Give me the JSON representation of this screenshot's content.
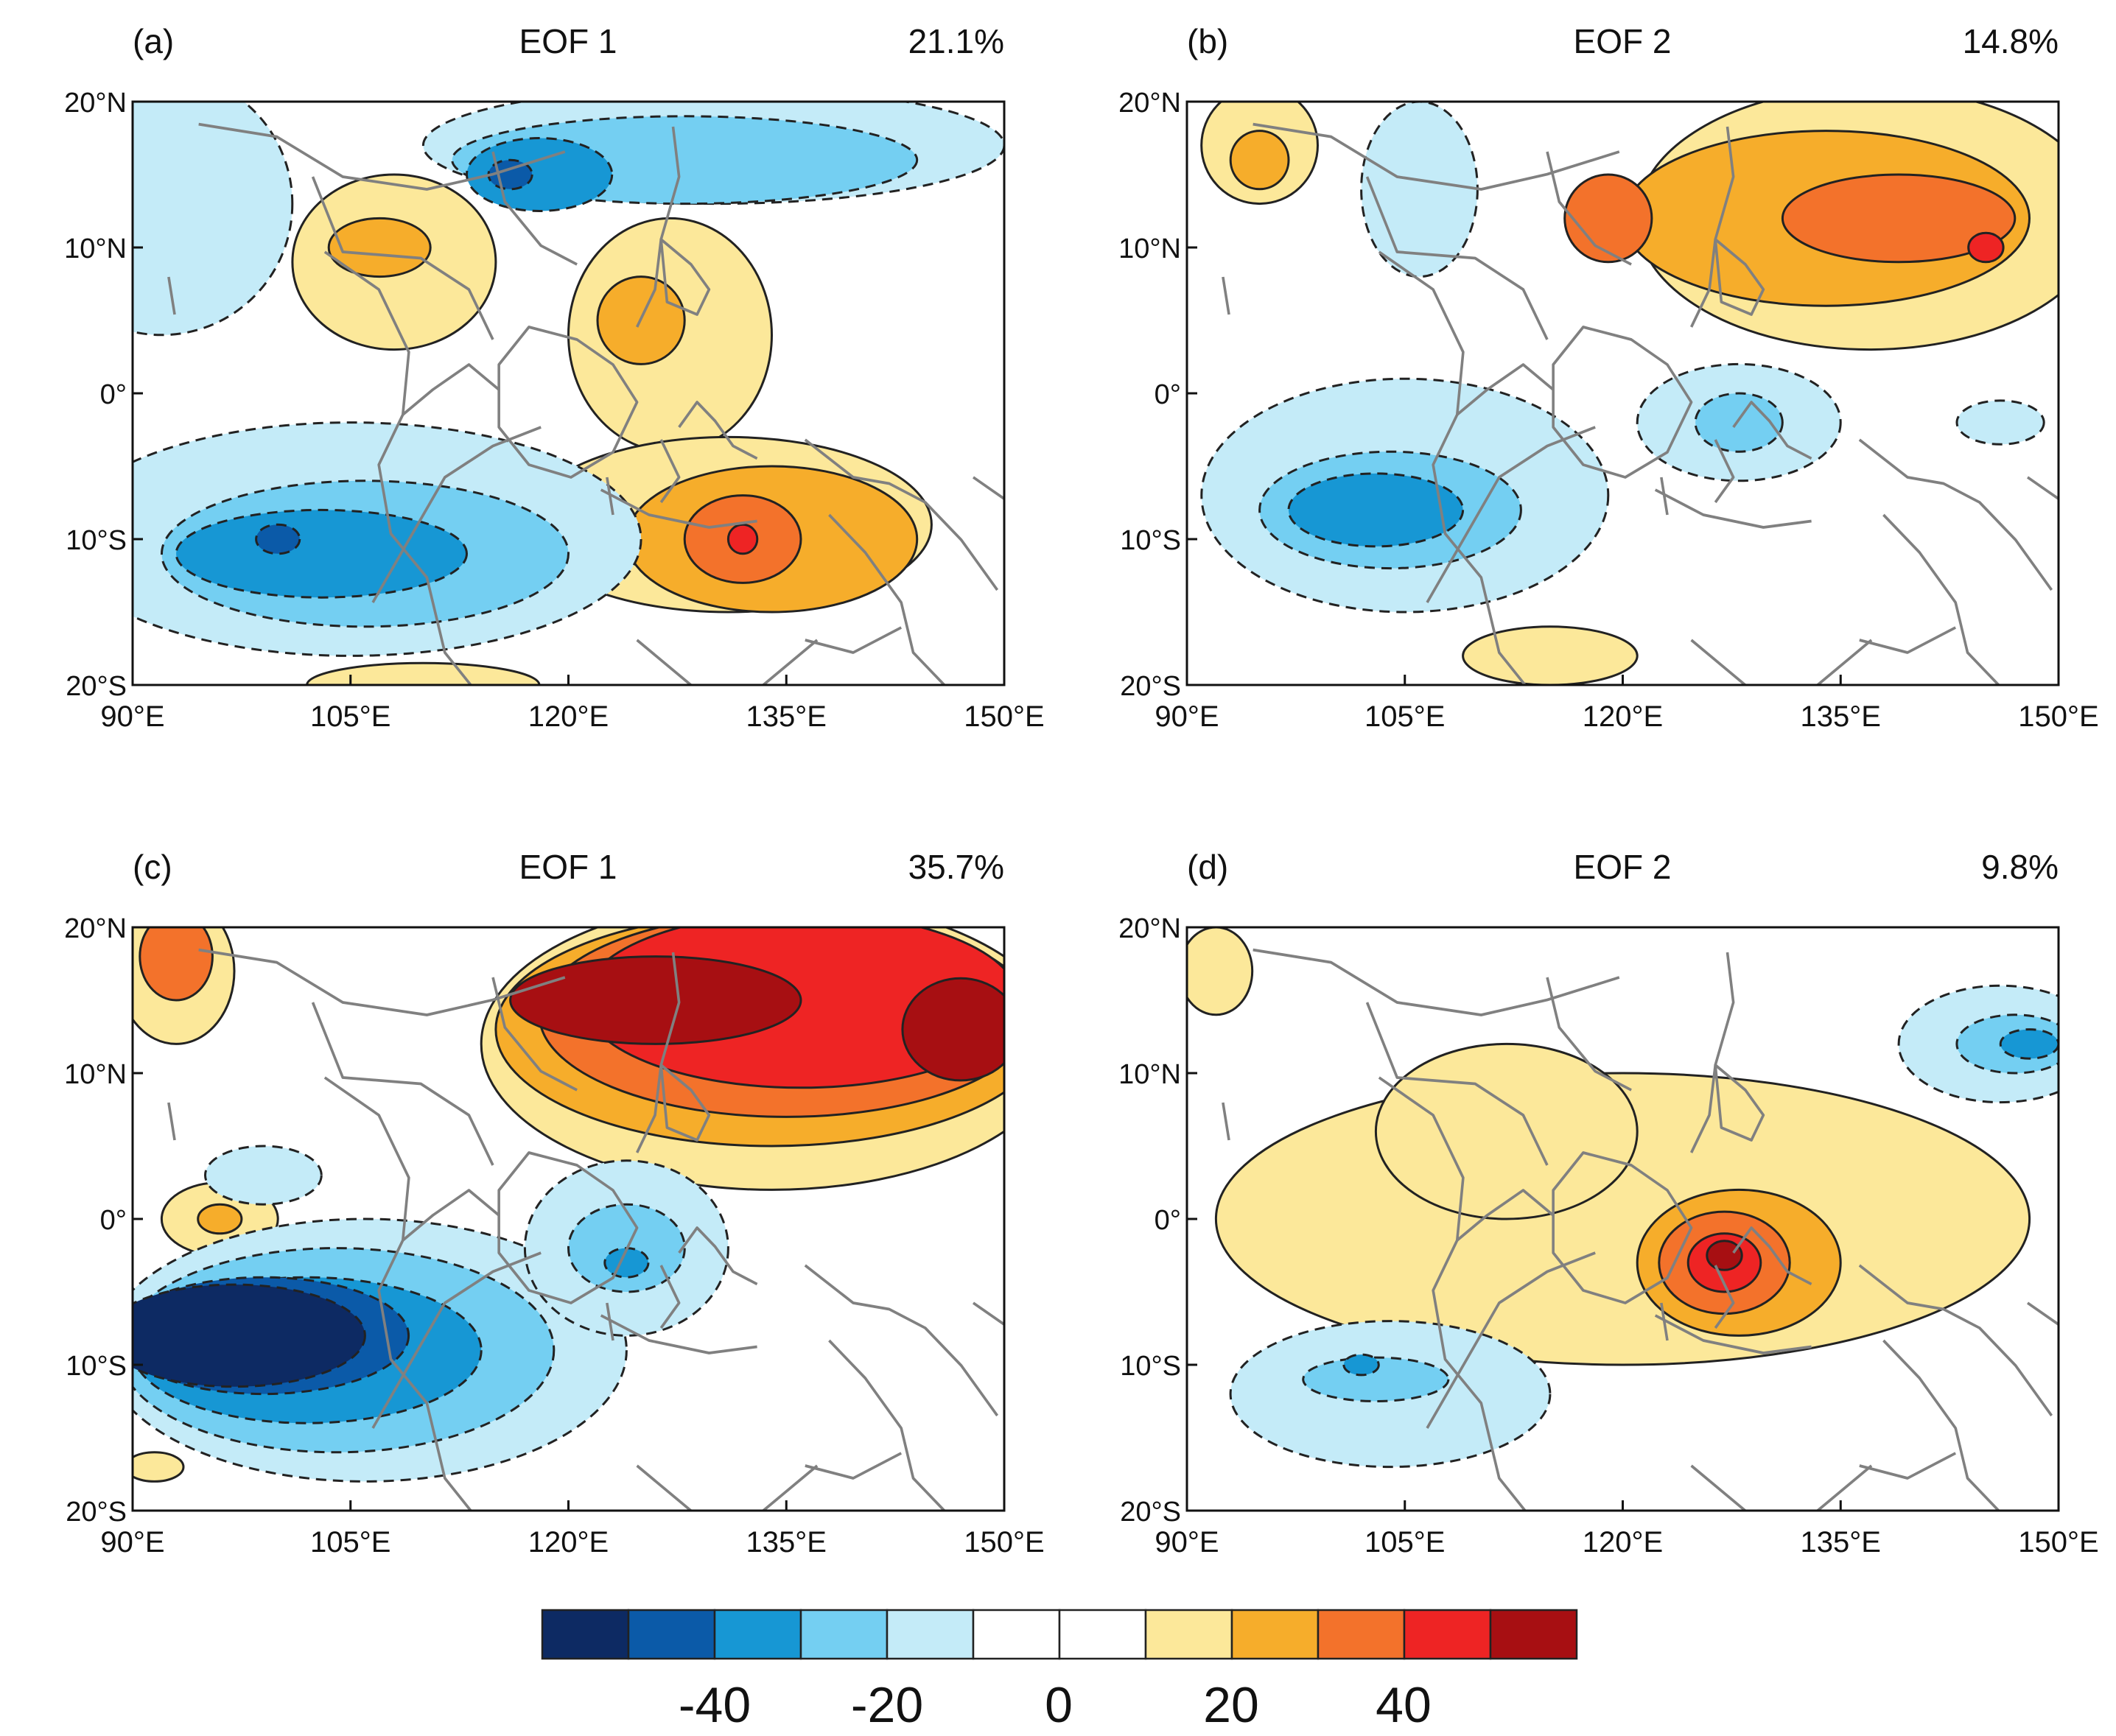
{
  "palette": [
    "#0d2a63",
    "#0b5aa8",
    "#1797d4",
    "#74cff2",
    "#c4ebf8",
    "#ffffff",
    "#ffffff",
    "#fce89a",
    "#f6ad2b",
    "#f3722b",
    "#ee2424",
    "#a70f12"
  ],
  "colorbar": {
    "labels": [
      "-40",
      "-20",
      "0",
      "20",
      "40"
    ]
  },
  "axes": {
    "lon_ticks": [
      "90°E",
      "105°E",
      "120°E",
      "135°E",
      "150°E"
    ],
    "lat_ticks": [
      "20°N",
      "10°N",
      "0°",
      "10°S",
      "20°S"
    ]
  },
  "panels": [
    {
      "id": "a",
      "tag": "(a)",
      "title": "EOF 1",
      "variance": "21.1%",
      "features": [
        {
          "c": 4,
          "lon": 92,
          "lat": 13,
          "rx": 9,
          "ry": 9
        },
        {
          "c": 4,
          "lon": 130,
          "lat": 17,
          "rx": 20,
          "ry": 4
        },
        {
          "c": 3,
          "lon": 128,
          "lat": 16,
          "rx": 16,
          "ry": 3
        },
        {
          "c": 2,
          "lon": 118,
          "lat": 15,
          "rx": 5,
          "ry": 2.5
        },
        {
          "c": 1,
          "lon": 116,
          "lat": 15,
          "rx": 1.5,
          "ry": 1
        },
        {
          "c": 7,
          "lon": 108,
          "lat": 9,
          "rx": 7,
          "ry": 6
        },
        {
          "c": 8,
          "lon": 107,
          "lat": 10,
          "rx": 3.5,
          "ry": 2
        },
        {
          "c": 7,
          "lon": 127,
          "lat": 4,
          "rx": 7,
          "ry": 8
        },
        {
          "c": 8,
          "lon": 125,
          "lat": 5,
          "rx": 3,
          "ry": 3
        },
        {
          "c": 7,
          "lon": 131,
          "lat": -9,
          "rx": 14,
          "ry": 6
        },
        {
          "c": 8,
          "lon": 134,
          "lat": -10,
          "rx": 10,
          "ry": 5
        },
        {
          "c": 9,
          "lon": 132,
          "lat": -10,
          "rx": 4,
          "ry": 3
        },
        {
          "c": 10,
          "lon": 132,
          "lat": -10,
          "rx": 1,
          "ry": 1
        },
        {
          "c": 4,
          "lon": 105,
          "lat": -10,
          "rx": 20,
          "ry": 8
        },
        {
          "c": 3,
          "lon": 106,
          "lat": -11,
          "rx": 14,
          "ry": 5
        },
        {
          "c": 2,
          "lon": 103,
          "lat": -11,
          "rx": 10,
          "ry": 3
        },
        {
          "c": 1,
          "lon": 100,
          "lat": -10,
          "rx": 1.5,
          "ry": 1
        },
        {
          "c": 7,
          "lon": 110,
          "lat": -20,
          "rx": 8,
          "ry": 1.5
        }
      ]
    },
    {
      "id": "b",
      "tag": "(b)",
      "title": "EOF 2",
      "variance": "14.8%",
      "features": [
        {
          "c": 7,
          "lon": 95,
          "lat": 17,
          "rx": 4,
          "ry": 4
        },
        {
          "c": 8,
          "lon": 95,
          "lat": 16,
          "rx": 2,
          "ry": 2
        },
        {
          "c": 4,
          "lon": 106,
          "lat": 14,
          "rx": 4,
          "ry": 6
        },
        {
          "c": 7,
          "lon": 137,
          "lat": 12,
          "rx": 16,
          "ry": 9
        },
        {
          "c": 8,
          "lon": 134,
          "lat": 12,
          "rx": 14,
          "ry": 6
        },
        {
          "c": 9,
          "lon": 139,
          "lat": 12,
          "rx": 8,
          "ry": 3
        },
        {
          "c": 9,
          "lon": 119,
          "lat": 12,
          "rx": 3,
          "ry": 3
        },
        {
          "c": 10,
          "lon": 145,
          "lat": 10,
          "rx": 1.2,
          "ry": 1
        },
        {
          "c": 4,
          "lon": 105,
          "lat": -7,
          "rx": 14,
          "ry": 8
        },
        {
          "c": 3,
          "lon": 104,
          "lat": -8,
          "rx": 9,
          "ry": 4
        },
        {
          "c": 2,
          "lon": 103,
          "lat": -8,
          "rx": 6,
          "ry": 2.5
        },
        {
          "c": 4,
          "lon": 128,
          "lat": -2,
          "rx": 7,
          "ry": 4
        },
        {
          "c": 3,
          "lon": 128,
          "lat": -2,
          "rx": 3,
          "ry": 2
        },
        {
          "c": 4,
          "lon": 146,
          "lat": -2,
          "rx": 3,
          "ry": 1.5
        },
        {
          "c": 7,
          "lon": 115,
          "lat": -18,
          "rx": 6,
          "ry": 2
        }
      ]
    },
    {
      "id": "c",
      "tag": "(c)",
      "title": "EOF 1",
      "variance": "35.7%",
      "features": [
        {
          "c": 7,
          "lon": 93,
          "lat": 17,
          "rx": 4,
          "ry": 5
        },
        {
          "c": 9,
          "lon": 93,
          "lat": 18,
          "rx": 2.5,
          "ry": 3
        },
        {
          "c": 7,
          "lon": 134,
          "lat": 12,
          "rx": 20,
          "ry": 10
        },
        {
          "c": 8,
          "lon": 134,
          "lat": 13,
          "rx": 19,
          "ry": 8
        },
        {
          "c": 9,
          "lon": 135,
          "lat": 14,
          "rx": 17,
          "ry": 7
        },
        {
          "c": 10,
          "lon": 136,
          "lat": 15,
          "rx": 15,
          "ry": 6
        },
        {
          "c": 11,
          "lon": 126,
          "lat": 15,
          "rx": 10,
          "ry": 3
        },
        {
          "c": 11,
          "lon": 147,
          "lat": 13,
          "rx": 4,
          "ry": 3.5
        },
        {
          "c": 7,
          "lon": 96,
          "lat": 0,
          "rx": 4,
          "ry": 2.5
        },
        {
          "c": 8,
          "lon": 96,
          "lat": 0,
          "rx": 1.5,
          "ry": 1
        },
        {
          "c": 4,
          "lon": 99,
          "lat": 3,
          "rx": 4,
          "ry": 2
        },
        {
          "c": 4,
          "lon": 106,
          "lat": -9,
          "rx": 18,
          "ry": 9
        },
        {
          "c": 3,
          "lon": 104,
          "lat": -9,
          "rx": 15,
          "ry": 7
        },
        {
          "c": 2,
          "lon": 102,
          "lat": -9,
          "rx": 12,
          "ry": 5
        },
        {
          "c": 1,
          "lon": 99,
          "lat": -8,
          "rx": 10,
          "ry": 4
        },
        {
          "c": 0,
          "lon": 97,
          "lat": -8,
          "rx": 9,
          "ry": 3.5
        },
        {
          "c": 4,
          "lon": 124,
          "lat": -2,
          "rx": 7,
          "ry": 6
        },
        {
          "c": 3,
          "lon": 124,
          "lat": -2,
          "rx": 4,
          "ry": 3
        },
        {
          "c": 2,
          "lon": 124,
          "lat": -3,
          "rx": 1.5,
          "ry": 1
        },
        {
          "c": 7,
          "lon": 91.5,
          "lat": -17,
          "rx": 2,
          "ry": 1
        }
      ]
    },
    {
      "id": "d",
      "tag": "(d)",
      "title": "EOF 2",
      "variance": "9.8%",
      "features": [
        {
          "c": 7,
          "lon": 120,
          "lat": 0,
          "rx": 28,
          "ry": 10
        },
        {
          "c": 7,
          "lon": 112,
          "lat": 6,
          "rx": 9,
          "ry": 6
        },
        {
          "c": 8,
          "lon": 128,
          "lat": -3,
          "rx": 7,
          "ry": 5
        },
        {
          "c": 9,
          "lon": 127,
          "lat": -3,
          "rx": 4.5,
          "ry": 3.5
        },
        {
          "c": 10,
          "lon": 127,
          "lat": -3,
          "rx": 2.5,
          "ry": 2
        },
        {
          "c": 11,
          "lon": 127,
          "lat": -2.5,
          "rx": 1.2,
          "ry": 1
        },
        {
          "c": 7,
          "lon": 92,
          "lat": 17,
          "rx": 2.5,
          "ry": 3
        },
        {
          "c": 4,
          "lon": 104,
          "lat": -12,
          "rx": 11,
          "ry": 5
        },
        {
          "c": 3,
          "lon": 103,
          "lat": -11,
          "rx": 5,
          "ry": 1.5
        },
        {
          "c": 2,
          "lon": 102,
          "lat": -10,
          "rx": 1.2,
          "ry": 0.7
        },
        {
          "c": 4,
          "lon": 146,
          "lat": 12,
          "rx": 7,
          "ry": 4
        },
        {
          "c": 3,
          "lon": 147,
          "lat": 12,
          "rx": 4,
          "ry": 2
        },
        {
          "c": 2,
          "lon": 148,
          "lat": 12,
          "rx": 2,
          "ry": 1
        }
      ]
    }
  ]
}
